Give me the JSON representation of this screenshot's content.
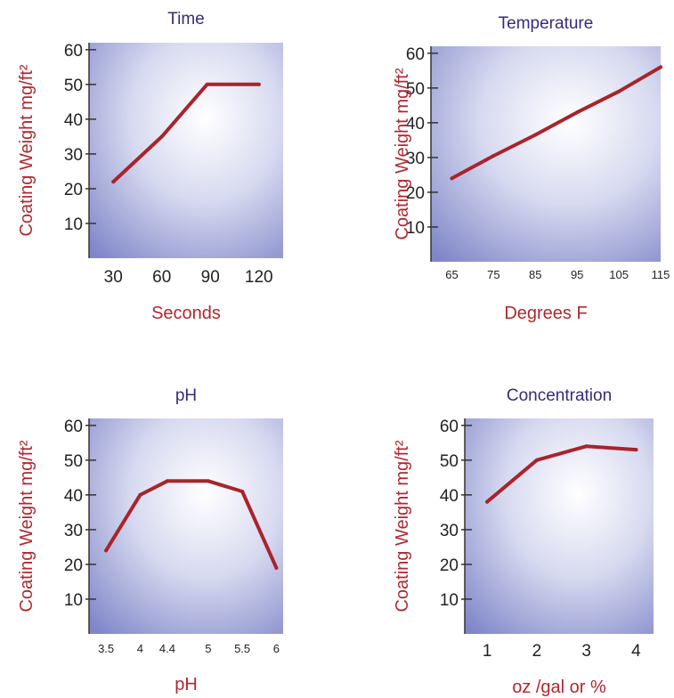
{
  "colors": {
    "line": "#a8242b",
    "title": "#3a2a7a",
    "label": "#b0282f",
    "plot_center": "#ffffff",
    "plot_edge": "#7f86c8"
  },
  "chart_data": [
    {
      "type": "line",
      "title": "Time",
      "xlabel": "Seconds",
      "ylabel": "Coating Weight mg/ft²",
      "ylim": [
        0,
        62
      ],
      "yticks": [
        10,
        20,
        30,
        40,
        50,
        60
      ],
      "x_tick_labels": [
        "30",
        "60",
        "90",
        "120"
      ],
      "xlim": [
        15,
        135
      ],
      "x": [
        30,
        60,
        88,
        120
      ],
      "series": [
        {
          "values": [
            22,
            35,
            50,
            50
          ]
        }
      ],
      "grid": false
    },
    {
      "type": "line",
      "title": "Temperature",
      "xlabel": "Degrees F",
      "ylabel": "Coating Weight mg/ft²",
      "ylim": [
        0,
        62
      ],
      "yticks": [
        10,
        20,
        30,
        40,
        50,
        60
      ],
      "x_tick_labels": [
        "65",
        "75",
        "85",
        "95",
        "105",
        "115"
      ],
      "xlim": [
        60,
        115
      ],
      "x": [
        65,
        75,
        85,
        95,
        105,
        115
      ],
      "series": [
        {
          "values": [
            24,
            30.5,
            36.5,
            43,
            49,
            56
          ]
        }
      ],
      "grid": false
    },
    {
      "type": "line",
      "title": "pH",
      "xlabel": "pH",
      "ylabel": "Coating Weight mg/ft²",
      "ylim": [
        0,
        62
      ],
      "yticks": [
        10,
        20,
        30,
        40,
        50,
        60
      ],
      "x_tick_labels": [
        "3.5",
        "4",
        "4.4",
        "5",
        "5.5",
        "6"
      ],
      "xlim": [
        3.25,
        6.1
      ],
      "x": [
        3.5,
        4,
        4.4,
        5,
        5.5,
        6
      ],
      "series": [
        {
          "values": [
            24,
            40,
            44,
            44,
            41,
            19
          ]
        }
      ],
      "grid": false
    },
    {
      "type": "line",
      "title": "Concentration",
      "xlabel": "oz /gal or %",
      "ylabel": "Coating Weight mg/ft²",
      "ylim": [
        0,
        62
      ],
      "yticks": [
        10,
        20,
        30,
        40,
        50,
        60
      ],
      "x_tick_labels": [
        "1",
        "2",
        "3",
        "4"
      ],
      "xlim": [
        0.55,
        4.35
      ],
      "x": [
        1,
        2,
        3,
        4
      ],
      "series": [
        {
          "values": [
            38,
            50,
            54,
            53
          ]
        }
      ],
      "grid": false
    }
  ]
}
